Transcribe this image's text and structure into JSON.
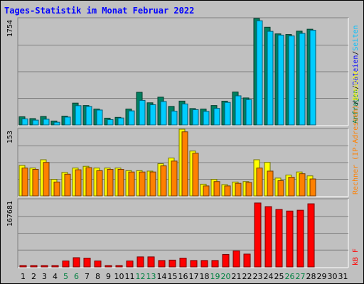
{
  "chart_data": {
    "type": "bar",
    "title": "Tages-Statistik im Monat Februar 2022",
    "categories": [
      "1",
      "2",
      "3",
      "4",
      "5",
      "6",
      "7",
      "8",
      "9",
      "10",
      "11",
      "12",
      "13",
      "14",
      "15",
      "16",
      "17",
      "18",
      "19",
      "20",
      "21",
      "22",
      "23",
      "24",
      "25",
      "26",
      "27",
      "28",
      "29",
      "30",
      "31"
    ],
    "weekend_days": [
      "5",
      "6",
      "12",
      "13",
      "19",
      "20",
      "26",
      "27"
    ],
    "panels": [
      {
        "id": "top",
        "ymax": 1754,
        "ymax_label": "1754",
        "legend": [
          {
            "text": "Anfragen",
            "color": "#008040"
          },
          {
            "text": "/",
            "color": "#000000"
          },
          {
            "text": "Dateien",
            "color": "#0000ff"
          },
          {
            "text": "/",
            "color": "#000000"
          },
          {
            "text": "Seiten",
            "color": "#00c0ff"
          }
        ],
        "series": [
          {
            "name": "Anfragen",
            "color": "#008060",
            "values": [
              135,
              105,
              140,
              65,
              145,
              360,
              320,
              262,
              112,
              125,
              262,
              538,
              365,
              458,
              305,
              393,
              270,
              262,
              320,
              392,
              543,
              445,
              1754,
              1610,
              1500,
              1490,
              1545,
              1577,
              0,
              0,
              0
            ]
          },
          {
            "name": "Dateien",
            "color": "#0000ff",
            "values": [
              0,
              0,
              0,
              0,
              0,
              0,
              0,
              0,
              0,
              0,
              0,
              0,
              0,
              0,
              0,
              0,
              0,
              0,
              0,
              0,
              0,
              0,
              0,
              0,
              0,
              0,
              0,
              0,
              0,
              0,
              0
            ]
          },
          {
            "name": "Seiten",
            "color": "#00ccff",
            "values": [
              100,
              80,
              95,
              45,
              130,
              318,
              305,
              246,
              88,
              115,
              232,
              405,
              333,
              386,
              228,
              346,
              252,
              224,
              273,
              372,
              480,
              418,
              1716,
              1542,
              1480,
              1466,
              1508,
              1560,
              0,
              0,
              0
            ]
          }
        ]
      },
      {
        "id": "mid",
        "ymax": 153,
        "ymax_label": "153",
        "legend": [
          {
            "text": "Rechner (IP-Adressen)",
            "color": "#ff8000"
          },
          {
            "text": "/",
            "color": "#000000"
          },
          {
            "text": "Besuche",
            "color": "#ffff00"
          }
        ],
        "series": [
          {
            "name": "Besuche",
            "color": "#ffff00",
            "values": [
              70,
              64,
              83,
              38,
              54,
              64,
              68,
              64,
              64,
              64,
              58,
              58,
              57,
              74,
              87,
              153,
              103,
              27,
              38,
              26,
              32,
              33,
              83,
              77,
              41,
              48,
              55,
              46,
              0,
              0,
              0
            ]
          },
          {
            "name": "Rechner (IP-Adressen)",
            "color": "#ff8000",
            "values": [
              64,
              61,
              77,
              32,
              50,
              60,
              65,
              58,
              61,
              61,
              55,
              55,
              55,
              69,
              80,
              147,
              98,
              23,
              33,
              23,
              29,
              31,
              64,
              57,
              35,
              43,
              51,
              39,
              0,
              0,
              0
            ]
          }
        ]
      },
      {
        "id": "bot",
        "ymax": 167681,
        "ymax_label": "167681",
        "legend": [
          {
            "text": "kB F",
            "color": "#ff0000"
          }
        ],
        "series": [
          {
            "name": "kB F",
            "color": "#ff0000",
            "values": [
              2000,
              2000,
              2000,
              2000,
              15000,
              23000,
              22000,
              15000,
              2000,
              2000,
              15000,
              25000,
              25000,
              16000,
              17000,
              22000,
              16000,
              16000,
              16000,
              31000,
              40000,
              32000,
              159000,
              150000,
              143000,
              139000,
              141000,
              157000,
              0,
              0,
              0
            ]
          }
        ]
      }
    ]
  }
}
